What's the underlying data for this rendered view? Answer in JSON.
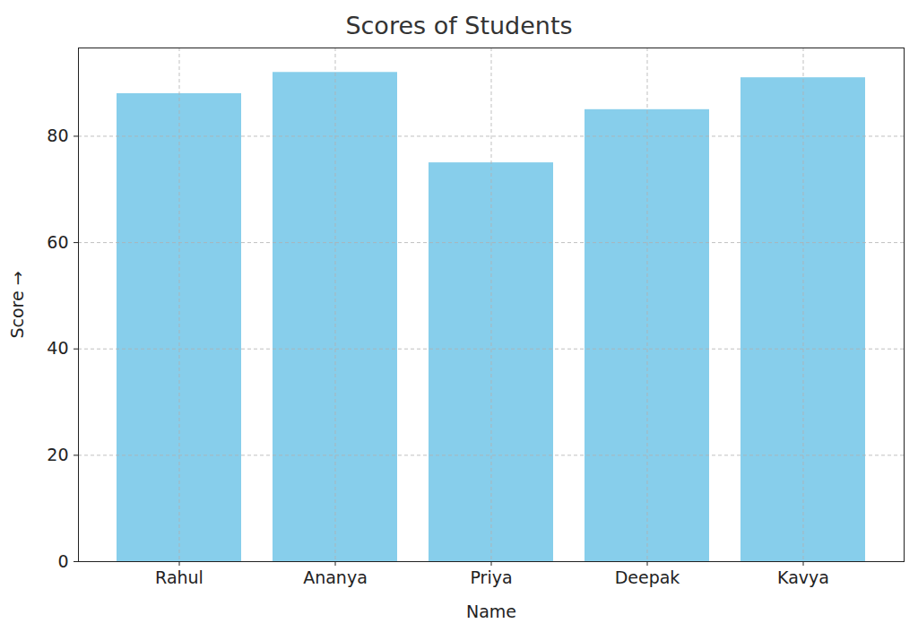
{
  "chart_data": {
    "type": "bar",
    "title": "Scores of Students",
    "x_label": "Name",
    "y_label": "Score",
    "categories": [
      "Rahul",
      "Ananya",
      "Priya",
      "Deepak",
      "Kavya"
    ],
    "values": [
      88,
      92,
      75,
      85,
      91
    ],
    "color": "#87ceeb",
    "ylim": [
      0,
      96.6
    ],
    "yticks": [
      0,
      20,
      40,
      60,
      80
    ],
    "grid": true
  }
}
